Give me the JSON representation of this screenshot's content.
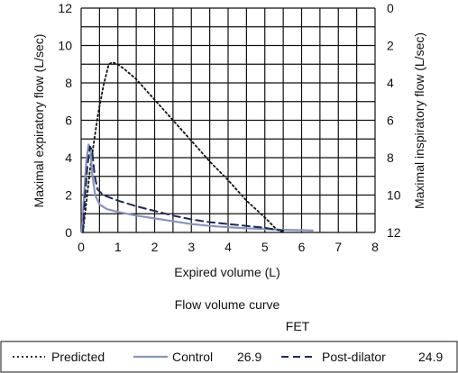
{
  "chart_data": {
    "type": "line",
    "title": "Flow volume curve",
    "subtitle": "FET",
    "xlabel": "Expired volume (L)",
    "ylabel": "Maximal expiratory flow (L/sec)",
    "ylabel_right": "Maximal inspiratory flow (L/sec)",
    "xlim": [
      0,
      8
    ],
    "ylim": [
      0,
      12
    ],
    "x_ticks": [
      "0",
      "1",
      "2",
      "3",
      "4",
      "5",
      "6",
      "7",
      "8"
    ],
    "y_ticks": [
      "0",
      "2",
      "4",
      "6",
      "8",
      "10",
      "12"
    ],
    "y_right_ticks": [
      "12",
      "10",
      "8",
      "6",
      "4",
      "2",
      "0"
    ],
    "grid": true,
    "legend_position": "bottom",
    "series": [
      {
        "name": "Predicted",
        "fet": "",
        "color": "#111111",
        "style": "dotted",
        "points": [
          [
            0.05,
            0
          ],
          [
            0.25,
            3.5
          ],
          [
            0.45,
            6.2
          ],
          [
            0.6,
            7.8
          ],
          [
            0.75,
            9.0
          ],
          [
            0.85,
            9.1
          ],
          [
            1.0,
            9.0
          ],
          [
            1.2,
            8.7
          ],
          [
            1.5,
            8.2
          ],
          [
            2.0,
            7.1
          ],
          [
            2.5,
            6.0
          ],
          [
            3.0,
            4.9
          ],
          [
            3.5,
            3.8
          ],
          [
            4.0,
            2.8
          ],
          [
            4.5,
            1.7
          ],
          [
            5.0,
            0.8
          ],
          [
            5.3,
            0.2
          ],
          [
            5.5,
            0
          ]
        ]
      },
      {
        "name": "Control",
        "fet": "26.9",
        "color": "#8a94b8",
        "style": "solid",
        "points": [
          [
            0.02,
            0
          ],
          [
            0.08,
            2.0
          ],
          [
            0.14,
            3.8
          ],
          [
            0.2,
            4.7
          ],
          [
            0.25,
            4.5
          ],
          [
            0.3,
            3.2
          ],
          [
            0.38,
            2.0
          ],
          [
            0.5,
            1.5
          ],
          [
            0.7,
            1.25
          ],
          [
            1.0,
            1.1
          ],
          [
            1.5,
            0.9
          ],
          [
            2.0,
            0.75
          ],
          [
            2.5,
            0.6
          ],
          [
            3.0,
            0.45
          ],
          [
            3.5,
            0.35
          ],
          [
            4.0,
            0.28
          ],
          [
            4.5,
            0.22
          ],
          [
            5.0,
            0.18
          ],
          [
            5.5,
            0.14
          ],
          [
            6.0,
            0.12
          ],
          [
            6.3,
            0.1
          ]
        ]
      },
      {
        "name": "Post-dilator",
        "fet": "24.9",
        "color": "#1f2a55",
        "style": "dashed",
        "points": [
          [
            0.05,
            0
          ],
          [
            0.1,
            1.8
          ],
          [
            0.17,
            3.5
          ],
          [
            0.24,
            4.6
          ],
          [
            0.3,
            4.4
          ],
          [
            0.37,
            3.0
          ],
          [
            0.45,
            2.3
          ],
          [
            0.6,
            2.0
          ],
          [
            0.8,
            1.85
          ],
          [
            1.0,
            1.7
          ],
          [
            1.5,
            1.4
          ],
          [
            2.0,
            1.15
          ],
          [
            2.5,
            0.9
          ],
          [
            3.0,
            0.7
          ],
          [
            3.5,
            0.55
          ],
          [
            4.0,
            0.45
          ],
          [
            4.5,
            0.35
          ],
          [
            5.0,
            0.25
          ],
          [
            5.3,
            0.15
          ],
          [
            5.5,
            0.1
          ]
        ]
      }
    ]
  }
}
